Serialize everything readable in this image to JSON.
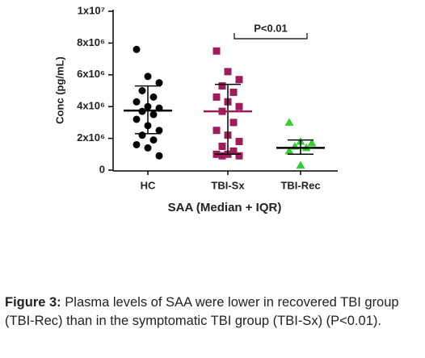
{
  "chart_data": {
    "type": "scatter",
    "y_label": "Conc (pg/mL)",
    "x_label": "SAA (Median + IQR)",
    "annotation": "P<0.01",
    "categories": [
      "HC",
      "TBI-Sx",
      "TBI-Rec"
    ],
    "ylim": [
      0,
      10000000
    ],
    "yticks": [
      0,
      {
        "value": 2000000,
        "label": "2x10⁶"
      },
      {
        "value": 4000000,
        "label": "4x10⁶"
      },
      {
        "value": 6000000,
        "label": "6x10⁶"
      },
      {
        "value": 8000000,
        "label": "8x10⁶"
      },
      {
        "value": 10000000,
        "label": "1x10⁷"
      }
    ],
    "series": [
      {
        "color": "#000000",
        "marker": "circle",
        "values": [
          7600000,
          5900000,
          5500000,
          5000000,
          4600000,
          4300000,
          4000000,
          3900000,
          3700000,
          3500000,
          3200000,
          2800000,
          2500000,
          2200000,
          1900000,
          1600000,
          1400000,
          900000
        ],
        "median": 3750000,
        "q1": 2300000,
        "q3": 5300000
      },
      {
        "color": "#9c1c5c",
        "marker": "square",
        "values": [
          7500000,
          6200000,
          5700000,
          5300000,
          4900000,
          4600000,
          4300000,
          4000000,
          3700000,
          3000000,
          2500000,
          2200000,
          1800000,
          1500000,
          1200000,
          1000000,
          1000000,
          900000,
          900000
        ],
        "median": 3700000,
        "q1": 1000000,
        "q3": 5400000
      },
      {
        "color": "#33cc33",
        "marker": "triangle",
        "values": [
          3000000,
          1800000,
          1700000,
          1500000,
          1400000,
          1200000,
          300000
        ],
        "median": 1400000,
        "q1": 1000000,
        "q3": 1900000
      }
    ]
  },
  "caption": {
    "label": "Figure 3:",
    "text": "Plasma levels of SAA were lower in recovered TBI group (TBI-Rec) than in the symptomatic TBI group (TBI-Sx) (P<0.01)."
  }
}
